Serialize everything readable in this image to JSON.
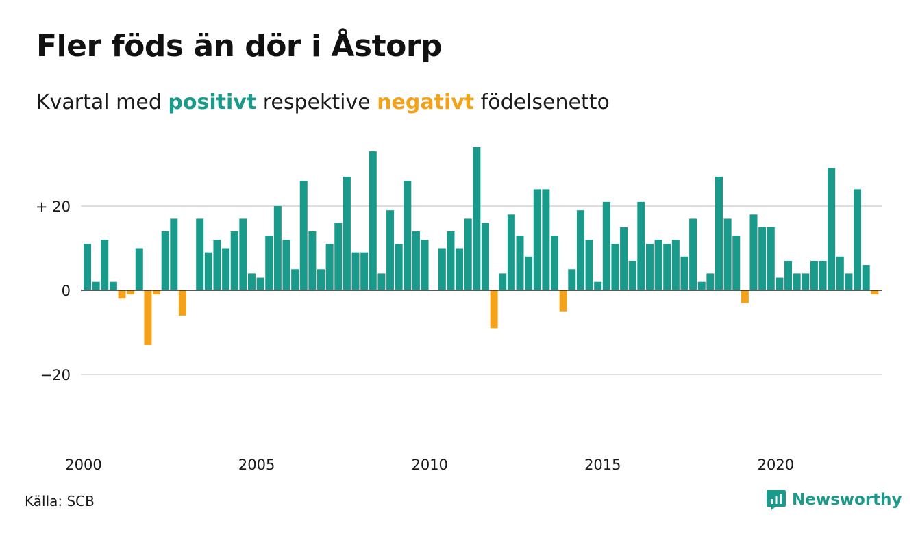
{
  "title": "Fler föds än dör i Åstorp",
  "subtitle": {
    "prefix": "Kvartal med ",
    "positive_word": "positivt",
    "middle": " respektive ",
    "negative_word": "negativt",
    "suffix": " födelsenetto"
  },
  "source": "Källa: SCB",
  "brand": "Newsworthy",
  "colors": {
    "positive": "#1a9a8a",
    "negative": "#f5a21b",
    "grid": "#dddddd",
    "zero": "#222222"
  },
  "chart_data": {
    "type": "bar",
    "start_year": 2000,
    "quarters_per_year": 4,
    "ylim": [
      -38,
      36
    ],
    "y_ticks": [
      {
        "value": 20,
        "label": "+ 20"
      },
      {
        "value": 0,
        "label": "0"
      },
      {
        "value": -20,
        "label": "−20"
      }
    ],
    "x_ticks": [
      "2000",
      "2005",
      "2010",
      "2015",
      "2020"
    ],
    "values": [
      11,
      2,
      12,
      2,
      -2,
      -1,
      10,
      -13,
      -1,
      14,
      17,
      -6,
      0,
      17,
      9,
      12,
      10,
      14,
      17,
      4,
      3,
      13,
      20,
      12,
      5,
      26,
      14,
      5,
      11,
      16,
      27,
      9,
      9,
      33,
      4,
      19,
      11,
      26,
      14,
      12,
      0,
      10,
      14,
      10,
      17,
      34,
      16,
      -9,
      4,
      18,
      13,
      8,
      24,
      24,
      13,
      -5,
      5,
      19,
      12,
      2,
      21,
      11,
      15,
      7,
      21,
      11,
      12,
      11,
      12,
      8,
      17,
      2,
      4,
      27,
      17,
      13,
      -3,
      18,
      15,
      15,
      3,
      7,
      4,
      4,
      7,
      7,
      29,
      8,
      4,
      24,
      6,
      -1
    ]
  }
}
